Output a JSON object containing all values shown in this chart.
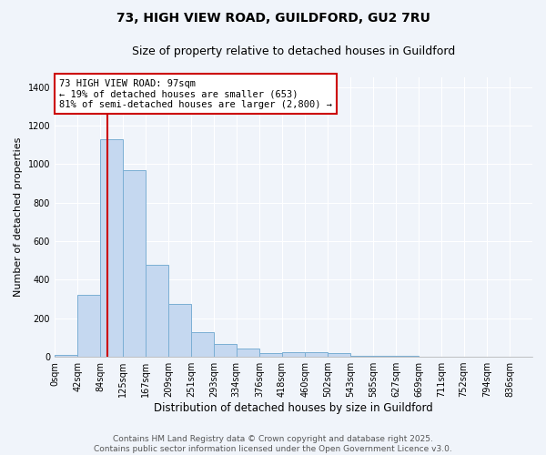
{
  "title": "73, HIGH VIEW ROAD, GUILDFORD, GU2 7RU",
  "subtitle": "Size of property relative to detached houses in Guildford",
  "xlabel": "Distribution of detached houses by size in Guildford",
  "ylabel": "Number of detached properties",
  "bar_color": "#c5d8f0",
  "bar_edge_color": "#7bafd4",
  "background_color": "#f0f4fa",
  "grid_color": "#ffffff",
  "annotation_box_color": "#cc0000",
  "annotation_text": "73 HIGH VIEW ROAD: 97sqm\n← 19% of detached houses are smaller (653)\n81% of semi-detached houses are larger (2,800) →",
  "red_line_x": 97,
  "categories": [
    "0sqm",
    "42sqm",
    "84sqm",
    "125sqm",
    "167sqm",
    "209sqm",
    "251sqm",
    "293sqm",
    "334sqm",
    "376sqm",
    "418sqm",
    "460sqm",
    "502sqm",
    "543sqm",
    "585sqm",
    "627sqm",
    "669sqm",
    "711sqm",
    "752sqm",
    "794sqm",
    "836sqm"
  ],
  "bin_edges": [
    0,
    42,
    84,
    125,
    167,
    209,
    251,
    293,
    334,
    376,
    418,
    460,
    502,
    543,
    585,
    627,
    669,
    711,
    752,
    794,
    836,
    878
  ],
  "values": [
    10,
    320,
    1130,
    970,
    475,
    275,
    130,
    65,
    45,
    20,
    25,
    22,
    20,
    5,
    5,
    5,
    2,
    2,
    2,
    2,
    2
  ],
  "ylim": [
    0,
    1450
  ],
  "yticks": [
    0,
    200,
    400,
    600,
    800,
    1000,
    1200,
    1400
  ],
  "footer_text": "Contains HM Land Registry data © Crown copyright and database right 2025.\nContains public sector information licensed under the Open Government Licence v3.0.",
  "title_fontsize": 10,
  "subtitle_fontsize": 9,
  "xlabel_fontsize": 8.5,
  "ylabel_fontsize": 8,
  "tick_fontsize": 7,
  "annotation_fontsize": 7.5,
  "footer_fontsize": 6.5
}
